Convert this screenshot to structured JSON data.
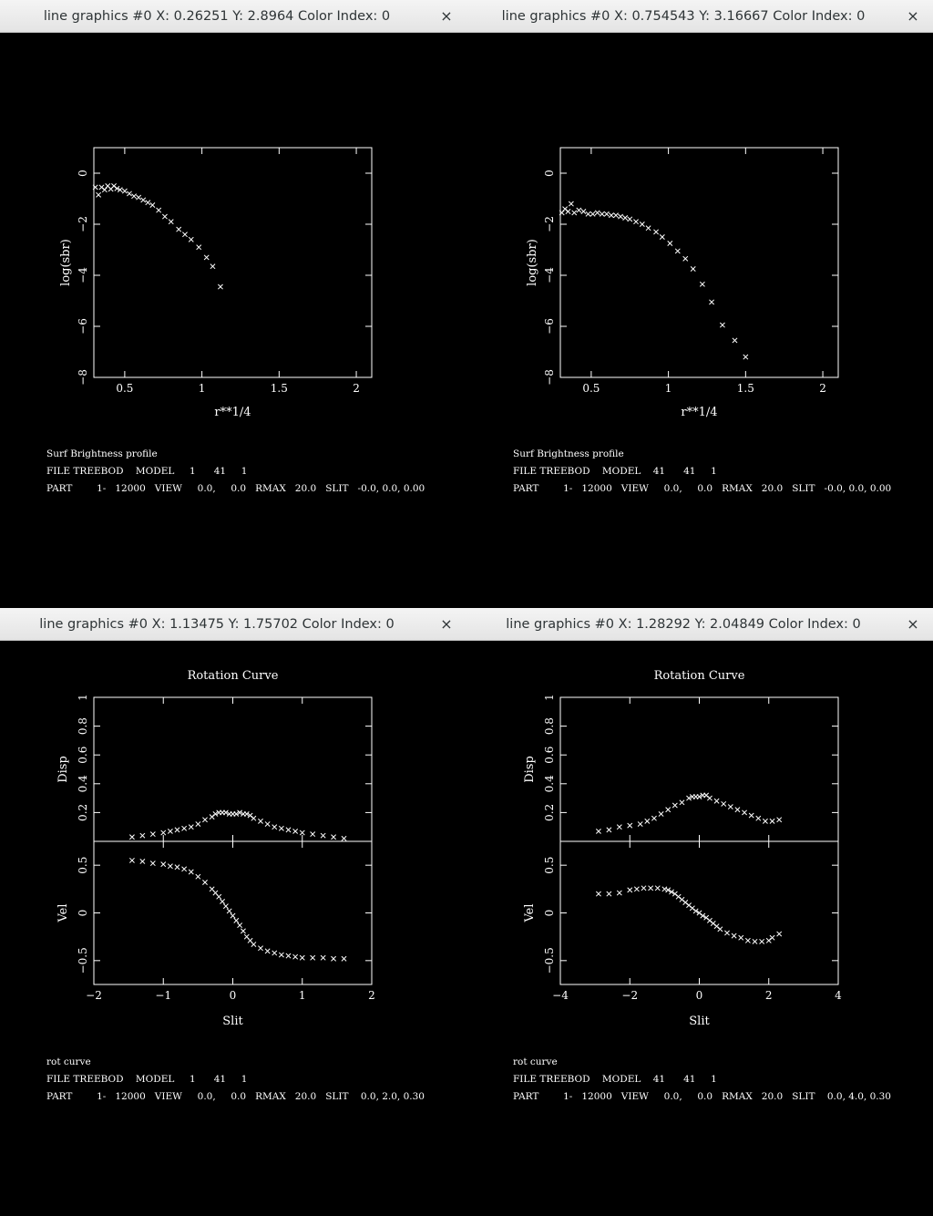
{
  "windows": [
    {
      "title": "line graphics #0 X: 0.26251 Y: 2.8964 Color Index: 0",
      "close": "×",
      "footer": [
        "Surf Brightness profile",
        "FILE TREEBOD    MODEL     1      41     1",
        "PART        1-   12000   VIEW     0.0,     0.0   RMAX   20.0   SLIT   -0.0, 0.0, 0.00"
      ]
    },
    {
      "title": "line graphics #0 X: 0.754543 Y: 3.16667 Color Index: 0",
      "close": "×",
      "footer": [
        "Surf Brightness profile",
        "FILE TREEBOD    MODEL    41      41     1",
        "PART        1-   12000   VIEW     0.0,     0.0   RMAX   20.0   SLIT   -0.0, 0.0, 0.00"
      ]
    },
    {
      "title": "line graphics #0 X: 1.13475 Y: 1.75702 Color Index: 0",
      "close": "×",
      "footer": [
        "rot curve",
        "FILE TREEBOD    MODEL     1      41     1",
        "PART        1-   12000   VIEW     0.0,     0.0   RMAX   20.0   SLIT    0.0, 2.0, 0.30"
      ]
    },
    {
      "title": "line graphics #0 X: 1.28292 Y: 2.04849 Color Index: 0",
      "close": "×",
      "footer": [
        "rot curve",
        "FILE TREEBOD    MODEL    41      41     1",
        "PART        1-   12000   VIEW     0.0,     0.0   RMAX   20.0   SLIT    0.0, 4.0, 0.30"
      ]
    }
  ],
  "chart_data": [
    {
      "type": "scatter",
      "title": "",
      "xlabel": "r**1/4",
      "ylabel": "log(sbr)",
      "xlim": [
        0.3,
        2.1
      ],
      "ylim": [
        -8,
        1.0
      ],
      "xticks": [
        0.5,
        1,
        1.5,
        2
      ],
      "xticklabels": [
        "0.5",
        "1",
        "1.5",
        "2"
      ],
      "yticks": [
        0,
        -2,
        -4,
        -6,
        -8
      ],
      "yticklabels": [
        "0",
        "−2",
        "−4",
        "−6",
        "−8"
      ],
      "x": [
        0.31,
        0.33,
        0.35,
        0.37,
        0.39,
        0.41,
        0.43,
        0.45,
        0.47,
        0.5,
        0.53,
        0.56,
        0.59,
        0.62,
        0.65,
        0.68,
        0.72,
        0.76,
        0.8,
        0.85,
        0.89,
        0.93,
        0.98,
        1.03,
        1.07,
        1.12
      ],
      "y": [
        -0.55,
        -0.85,
        -0.55,
        -0.65,
        -0.5,
        -0.62,
        -0.5,
        -0.6,
        -0.65,
        -0.7,
        -0.8,
        -0.9,
        -0.95,
        -1.05,
        -1.15,
        -1.25,
        -1.45,
        -1.7,
        -1.9,
        -2.2,
        -2.4,
        -2.6,
        -2.9,
        -3.3,
        -3.65,
        -4.45
      ]
    },
    {
      "type": "scatter",
      "title": "",
      "xlabel": "r**1/4",
      "ylabel": "log(sbr)",
      "xlim": [
        0.3,
        2.1
      ],
      "ylim": [
        -8,
        1.0
      ],
      "xticks": [
        0.5,
        1,
        1.5,
        2
      ],
      "xticklabels": [
        "0.5",
        "1",
        "1.5",
        "2"
      ],
      "yticks": [
        0,
        -2,
        -4,
        -6,
        -8
      ],
      "yticklabels": [
        "0",
        "−2",
        "−4",
        "−6",
        "−8"
      ],
      "x": [
        0.31,
        0.33,
        0.35,
        0.37,
        0.39,
        0.42,
        0.45,
        0.48,
        0.51,
        0.54,
        0.57,
        0.6,
        0.63,
        0.66,
        0.69,
        0.72,
        0.75,
        0.79,
        0.83,
        0.87,
        0.92,
        0.96,
        1.01,
        1.06,
        1.11,
        1.16,
        1.22,
        1.28,
        1.35,
        1.43,
        1.5
      ],
      "y": [
        -1.55,
        -1.4,
        -1.5,
        -1.2,
        -1.55,
        -1.45,
        -1.5,
        -1.6,
        -1.6,
        -1.55,
        -1.6,
        -1.6,
        -1.65,
        -1.65,
        -1.7,
        -1.75,
        -1.8,
        -1.9,
        -2.0,
        -2.15,
        -2.3,
        -2.5,
        -2.75,
        -3.05,
        -3.35,
        -3.75,
        -4.35,
        -5.05,
        -5.95,
        -6.55,
        -7.2
      ]
    },
    {
      "type": "scatter",
      "title": "Rotation Curve",
      "xlabel": "Slit",
      "xlim": [
        -2,
        2
      ],
      "xticks": [
        -2,
        -1,
        0,
        1,
        2
      ],
      "xticklabels": [
        "−2",
        "−1",
        "0",
        "1",
        "2"
      ],
      "panels": [
        {
          "ylabel": "Disp",
          "ylim": [
            0,
            1
          ],
          "yticks": [
            0.2,
            0.4,
            0.6,
            0.8,
            1
          ],
          "yticklabels": [
            "0.2",
            "0.4",
            "0.6",
            "0.8",
            "1"
          ],
          "x": [
            -1.45,
            -1.3,
            -1.15,
            -1.0,
            -0.9,
            -0.8,
            -0.7,
            -0.6,
            -0.5,
            -0.4,
            -0.3,
            -0.25,
            -0.2,
            -0.15,
            -0.1,
            -0.05,
            0,
            0.05,
            0.1,
            0.15,
            0.2,
            0.25,
            0.3,
            0.4,
            0.5,
            0.6,
            0.7,
            0.8,
            0.9,
            1.0,
            1.15,
            1.3,
            1.45,
            1.6
          ],
          "y": [
            0.03,
            0.04,
            0.05,
            0.06,
            0.07,
            0.08,
            0.09,
            0.1,
            0.12,
            0.15,
            0.17,
            0.19,
            0.2,
            0.2,
            0.2,
            0.19,
            0.19,
            0.19,
            0.2,
            0.19,
            0.19,
            0.18,
            0.16,
            0.14,
            0.12,
            0.1,
            0.09,
            0.08,
            0.07,
            0.06,
            0.05,
            0.04,
            0.03,
            0.02
          ]
        },
        {
          "ylabel": "Vel",
          "ylim": [
            -0.75,
            0.75
          ],
          "yticks": [
            -0.5,
            0,
            0.5
          ],
          "yticklabels": [
            "−0.5",
            "0",
            "0.5"
          ],
          "x": [
            -1.45,
            -1.3,
            -1.15,
            -1.0,
            -0.9,
            -0.8,
            -0.7,
            -0.6,
            -0.5,
            -0.4,
            -0.3,
            -0.25,
            -0.2,
            -0.15,
            -0.1,
            -0.05,
            0,
            0.05,
            0.1,
            0.15,
            0.2,
            0.25,
            0.3,
            0.4,
            0.5,
            0.6,
            0.7,
            0.8,
            0.9,
            1.0,
            1.15,
            1.3,
            1.45,
            1.6
          ],
          "y": [
            0.55,
            0.54,
            0.52,
            0.51,
            0.49,
            0.48,
            0.46,
            0.43,
            0.38,
            0.32,
            0.25,
            0.21,
            0.17,
            0.12,
            0.07,
            0.02,
            -0.03,
            -0.08,
            -0.13,
            -0.19,
            -0.25,
            -0.29,
            -0.33,
            -0.37,
            -0.4,
            -0.42,
            -0.44,
            -0.45,
            -0.46,
            -0.47,
            -0.47,
            -0.47,
            -0.48,
            -0.48
          ]
        }
      ]
    },
    {
      "type": "scatter",
      "title": "Rotation Curve",
      "xlabel": "Slit",
      "xlim": [
        -4,
        4
      ],
      "xticks": [
        -4,
        -2,
        0,
        2,
        4
      ],
      "xticklabels": [
        "−4",
        "−2",
        "0",
        "2",
        "4"
      ],
      "panels": [
        {
          "ylabel": "Disp",
          "ylim": [
            0,
            1
          ],
          "yticks": [
            0.2,
            0.4,
            0.6,
            0.8,
            1
          ],
          "yticklabels": [
            "0.2",
            "0.4",
            "0.6",
            "0.8",
            "1"
          ],
          "x": [
            -2.9,
            -2.6,
            -2.3,
            -2.0,
            -1.7,
            -1.5,
            -1.3,
            -1.1,
            -0.9,
            -0.7,
            -0.5,
            -0.3,
            -0.2,
            -0.1,
            0,
            0.1,
            0.2,
            0.3,
            0.5,
            0.7,
            0.9,
            1.1,
            1.3,
            1.5,
            1.7,
            1.9,
            2.1,
            2.3
          ],
          "y": [
            0.07,
            0.08,
            0.1,
            0.11,
            0.12,
            0.14,
            0.16,
            0.19,
            0.22,
            0.25,
            0.27,
            0.3,
            0.31,
            0.31,
            0.31,
            0.32,
            0.32,
            0.3,
            0.28,
            0.26,
            0.24,
            0.22,
            0.2,
            0.18,
            0.16,
            0.14,
            0.14,
            0.15
          ]
        },
        {
          "ylabel": "Vel",
          "ylim": [
            -0.75,
            0.75
          ],
          "yticks": [
            -0.5,
            0,
            0.5
          ],
          "yticklabels": [
            "−0.5",
            "0",
            "0.5"
          ],
          "x": [
            -2.9,
            -2.6,
            -2.3,
            -2.0,
            -1.8,
            -1.6,
            -1.4,
            -1.2,
            -1.0,
            -0.9,
            -0.8,
            -0.7,
            -0.6,
            -0.5,
            -0.4,
            -0.3,
            -0.2,
            -0.1,
            0,
            0.1,
            0.2,
            0.3,
            0.4,
            0.5,
            0.6,
            0.8,
            1.0,
            1.2,
            1.4,
            1.6,
            1.8,
            2.0,
            2.1,
            2.3
          ],
          "y": [
            0.2,
            0.2,
            0.21,
            0.24,
            0.25,
            0.26,
            0.26,
            0.26,
            0.25,
            0.24,
            0.22,
            0.2,
            0.17,
            0.14,
            0.11,
            0.08,
            0.05,
            0.02,
            0.0,
            -0.03,
            -0.05,
            -0.08,
            -0.11,
            -0.14,
            -0.17,
            -0.21,
            -0.24,
            -0.26,
            -0.29,
            -0.3,
            -0.3,
            -0.29,
            -0.26,
            -0.22
          ]
        }
      ]
    }
  ]
}
